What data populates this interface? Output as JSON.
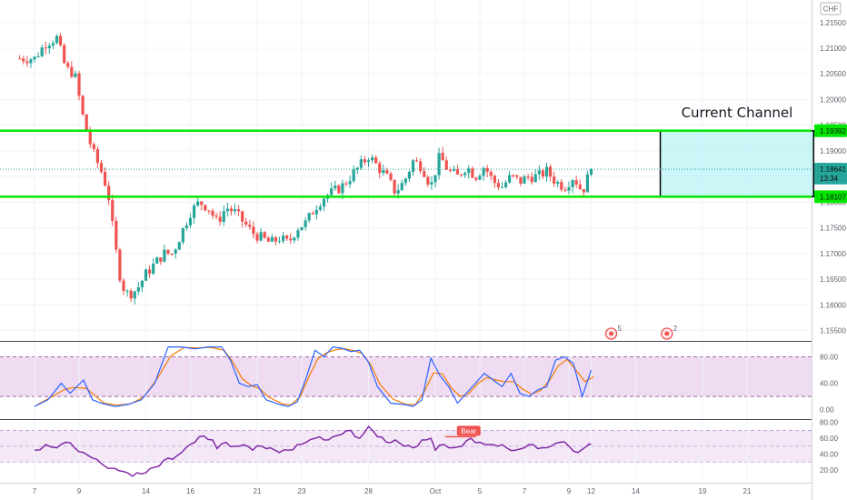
{
  "chart_data": {
    "type": "candlestick",
    "currency_badge": "CHF",
    "annotation": "Current Channel",
    "price_axis": {
      "ticks": [
        "1.21500",
        "1.21000",
        "1.20500",
        "1.20000",
        "1.19500",
        "1.19000",
        "1.18500",
        "1.18000",
        "1.17500",
        "1.17000",
        "1.16500",
        "1.16000",
        "1.15500"
      ],
      "range": [
        1.1535,
        1.2185
      ]
    },
    "price_labels": [
      {
        "text": "1.19392",
        "price": 1.19392,
        "color": "#00e600"
      },
      {
        "text": "1.18641",
        "price": 1.18641,
        "color": "#26a69a"
      },
      {
        "text": "13:34",
        "price": 1.1847,
        "color": "#26a69a"
      },
      {
        "text": "1.18107",
        "price": 1.18107,
        "color": "#00e600"
      }
    ],
    "support_line": 1.18107,
    "resistance_line": 1.19392,
    "last_price": 1.18641,
    "channel_box": {
      "x_start": 27.9,
      "x_end": 35.4,
      "price_top": 1.19392,
      "price_bottom": 1.18107
    },
    "x_axis": {
      "ticks": [
        {
          "label": "7",
          "x": 0
        },
        {
          "label": "9",
          "x": 2
        },
        {
          "label": "14",
          "x": 5
        },
        {
          "label": "16",
          "x": 7
        },
        {
          "label": "21",
          "x": 10
        },
        {
          "label": "23",
          "x": 12
        },
        {
          "label": "28",
          "x": 15
        },
        {
          "label": "Oct",
          "x": 18
        },
        {
          "label": "5",
          "x": 20
        },
        {
          "label": "7",
          "x": 22
        },
        {
          "label": "9",
          "x": 24
        },
        {
          "label": "12",
          "x": 25
        },
        {
          "label": "14",
          "x": 27
        },
        {
          "label": "19",
          "x": 30
        },
        {
          "label": "21",
          "x": 32
        }
      ]
    },
    "close_anchors": [
      [
        0,
        1.208
      ],
      [
        0.5,
        1.211
      ],
      [
        1.0,
        1.212
      ],
      [
        1.4,
        1.206
      ],
      [
        1.8,
        1.205
      ],
      [
        2.2,
        1.196
      ],
      [
        2.6,
        1.19
      ],
      [
        3.0,
        1.186
      ],
      [
        3.3,
        1.182
      ],
      [
        3.6,
        1.172
      ],
      [
        3.9,
        1.164
      ],
      [
        4.2,
        1.162
      ],
      [
        4.6,
        1.163
      ],
      [
        5.0,
        1.166
      ],
      [
        5.4,
        1.168
      ],
      [
        5.8,
        1.17
      ],
      [
        6.2,
        1.17
      ],
      [
        6.6,
        1.174
      ],
      [
        7.0,
        1.178
      ],
      [
        7.4,
        1.18
      ],
      [
        7.8,
        1.179
      ],
      [
        8.2,
        1.176
      ],
      [
        8.6,
        1.179
      ],
      [
        9.0,
        1.178
      ],
      [
        9.4,
        1.176
      ],
      [
        9.8,
        1.174
      ],
      [
        10.2,
        1.173
      ],
      [
        10.6,
        1.172
      ],
      [
        11.0,
        1.173
      ],
      [
        11.4,
        1.172
      ],
      [
        11.8,
        1.175
      ],
      [
        12.2,
        1.176
      ],
      [
        12.6,
        1.179
      ],
      [
        13.0,
        1.181
      ],
      [
        13.4,
        1.182
      ],
      [
        13.8,
        1.183
      ],
      [
        14.2,
        1.185
      ],
      [
        14.6,
        1.187
      ],
      [
        15.0,
        1.189
      ],
      [
        15.4,
        1.187
      ],
      [
        15.8,
        1.185
      ],
      [
        16.2,
        1.182
      ],
      [
        16.6,
        1.184
      ],
      [
        17.0,
        1.188
      ],
      [
        17.4,
        1.187
      ],
      [
        17.8,
        1.183
      ],
      [
        18.2,
        1.189
      ],
      [
        18.6,
        1.186
      ],
      [
        19.0,
        1.185
      ],
      [
        19.4,
        1.187
      ],
      [
        19.8,
        1.185
      ],
      [
        20.2,
        1.187
      ],
      [
        20.6,
        1.184
      ],
      [
        21.0,
        1.183
      ],
      [
        21.4,
        1.185
      ],
      [
        21.8,
        1.184
      ],
      [
        22.2,
        1.185
      ],
      [
        22.6,
        1.185
      ],
      [
        23.0,
        1.186
      ],
      [
        23.4,
        1.184
      ],
      [
        23.8,
        1.183
      ],
      [
        24.2,
        1.185
      ],
      [
        24.6,
        1.182
      ],
      [
        25.0,
        1.1864
      ]
    ],
    "stochastic": {
      "ticks": [
        "80.00",
        "40.00",
        "0.00"
      ],
      "range": [
        -10,
        100
      ],
      "band": [
        20,
        80
      ],
      "k_color": "#2962ff",
      "d_color": "#f57c00",
      "k_anchors": [
        [
          0,
          5
        ],
        [
          0.6,
          15
        ],
        [
          1.2,
          40
        ],
        [
          1.6,
          25
        ],
        [
          2.2,
          45
        ],
        [
          2.6,
          15
        ],
        [
          3.0,
          10
        ],
        [
          3.6,
          5
        ],
        [
          4.2,
          8
        ],
        [
          4.8,
          15
        ],
        [
          5.4,
          40
        ],
        [
          6.0,
          95
        ],
        [
          6.6,
          95
        ],
        [
          7.2,
          92
        ],
        [
          7.8,
          95
        ],
        [
          8.4,
          95
        ],
        [
          8.8,
          75
        ],
        [
          9.2,
          40
        ],
        [
          9.6,
          35
        ],
        [
          10.0,
          38
        ],
        [
          10.4,
          15
        ],
        [
          11.0,
          8
        ],
        [
          11.4,
          5
        ],
        [
          11.8,
          12
        ],
        [
          12.2,
          48
        ],
        [
          12.6,
          90
        ],
        [
          13.0,
          80
        ],
        [
          13.4,
          95
        ],
        [
          13.8,
          93
        ],
        [
          14.2,
          88
        ],
        [
          14.6,
          90
        ],
        [
          15.0,
          72
        ],
        [
          15.4,
          35
        ],
        [
          16.0,
          10
        ],
        [
          16.6,
          8
        ],
        [
          17.0,
          5
        ],
        [
          17.4,
          15
        ],
        [
          17.8,
          78
        ],
        [
          18.2,
          52
        ],
        [
          18.6,
          35
        ],
        [
          19.0,
          10
        ],
        [
          19.4,
          25
        ],
        [
          19.8,
          40
        ],
        [
          20.2,
          55
        ],
        [
          20.6,
          45
        ],
        [
          21.0,
          35
        ],
        [
          21.4,
          55
        ],
        [
          21.8,
          25
        ],
        [
          22.2,
          20
        ],
        [
          22.6,
          30
        ],
        [
          23.0,
          35
        ],
        [
          23.4,
          75
        ],
        [
          23.8,
          80
        ],
        [
          24.2,
          70
        ],
        [
          24.6,
          20
        ],
        [
          25.0,
          60
        ]
      ]
    },
    "rsi": {
      "ticks": [
        "80.00",
        "60.00",
        "40.00",
        "20.00"
      ],
      "range": [
        5,
        82
      ],
      "band": [
        30,
        70
      ],
      "mid": 50,
      "color": "#7b1fa2",
      "badge": "Bear",
      "badge_x": 19.5,
      "anchors": [
        [
          0,
          45
        ],
        [
          0.5,
          52
        ],
        [
          1.0,
          48
        ],
        [
          1.4,
          55
        ],
        [
          1.8,
          48
        ],
        [
          2.2,
          42
        ],
        [
          2.6,
          35
        ],
        [
          3.0,
          28
        ],
        [
          3.6,
          22
        ],
        [
          4.0,
          18
        ],
        [
          4.4,
          12
        ],
        [
          4.8,
          15
        ],
        [
          5.2,
          22
        ],
        [
          5.6,
          25
        ],
        [
          6.0,
          35
        ],
        [
          6.4,
          38
        ],
        [
          6.8,
          48
        ],
        [
          7.2,
          55
        ],
        [
          7.6,
          63
        ],
        [
          8.0,
          58
        ],
        [
          8.2,
          47
        ],
        [
          8.6,
          55
        ],
        [
          9.0,
          50
        ],
        [
          9.4,
          52
        ],
        [
          9.8,
          45
        ],
        [
          10.2,
          50
        ],
        [
          10.6,
          48
        ],
        [
          11.0,
          42
        ],
        [
          11.4,
          45
        ],
        [
          11.8,
          52
        ],
        [
          12.2,
          55
        ],
        [
          12.6,
          60
        ],
        [
          13.0,
          58
        ],
        [
          13.4,
          62
        ],
        [
          13.8,
          65
        ],
        [
          14.2,
          70
        ],
        [
          14.6,
          60
        ],
        [
          15.0,
          75
        ],
        [
          15.4,
          62
        ],
        [
          15.8,
          55
        ],
        [
          16.2,
          58
        ],
        [
          16.6,
          50
        ],
        [
          17.0,
          48
        ],
        [
          17.4,
          58
        ],
        [
          17.8,
          60
        ],
        [
          18.0,
          45
        ],
        [
          18.4,
          52
        ],
        [
          18.8,
          48
        ],
        [
          19.2,
          50
        ],
        [
          19.6,
          60
        ],
        [
          20.0,
          55
        ],
        [
          20.4,
          52
        ],
        [
          20.8,
          50
        ],
        [
          21.2,
          48
        ],
        [
          21.6,
          45
        ],
        [
          22.0,
          48
        ],
        [
          22.4,
          52
        ],
        [
          22.8,
          48
        ],
        [
          23.2,
          50
        ],
        [
          23.6,
          55
        ],
        [
          24.0,
          50
        ],
        [
          24.4,
          42
        ],
        [
          24.8,
          50
        ],
        [
          25.0,
          52
        ]
      ]
    },
    "events": [
      {
        "x": 25.9,
        "count": "5"
      },
      {
        "x": 28.4,
        "count": "2"
      }
    ]
  }
}
